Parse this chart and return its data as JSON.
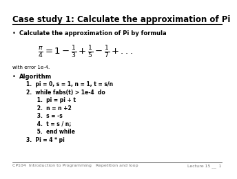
{
  "title": "Case study 1: Calculate the approximation of Pi",
  "background_color": "#ffffff",
  "title_fontsize": 8.5,
  "bullet1_label": "Calculate the approximation of Pi by formula",
  "formula_text": "$\\frac{\\pi}{4} = 1 - \\frac{1}{3} + \\frac{1}{5} - \\frac{1}{7} + ...$",
  "error_text": "with error 1e-4.",
  "bullet2_label": "Algorithm",
  "algo_lines": [
    "1.  pi = 0, s = 1, n = 1, t = s/n",
    "2.  while fabs(t) > 1e-4  do",
    "      1.  pi = pi + t",
    "      2.  n = n +2",
    "      3.  s = -s",
    "      4.  t = s / n;",
    "      5.  end while",
    "3.  Pi = 4 * pi"
  ],
  "footer_left": "CP104  Introduction to Programming",
  "footer_center": "Repetition and loop",
  "footer_right": "Lecture 15 __  1",
  "footer_fontsize": 4.5,
  "bullet_fontsize": 6.0,
  "algo_fontsize": 5.5,
  "formula_fontsize": 9.5,
  "error_fontsize": 5.0,
  "line_color": "#000000"
}
